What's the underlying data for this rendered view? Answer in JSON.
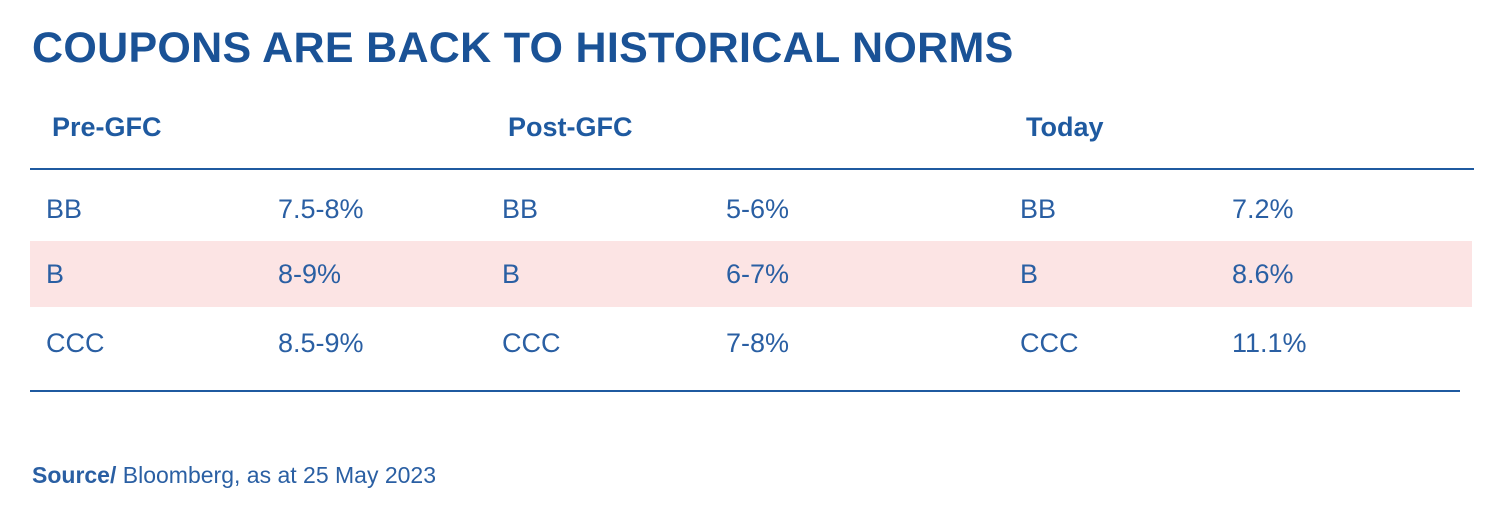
{
  "title": "COUPONS ARE BACK TO HISTORICAL NORMS",
  "groups": [
    {
      "label": "Pre-GFC"
    },
    {
      "label": "Post-GFC"
    },
    {
      "label": "Today"
    }
  ],
  "rows": [
    {
      "pre_rating": "BB",
      "pre_value": "7.5-8%",
      "post_rating": "BB",
      "post_value": "5-6%",
      "today_rating": "BB",
      "today_value": "7.2%"
    },
    {
      "pre_rating": "B",
      "pre_value": "8-9%",
      "post_rating": "B",
      "post_value": "6-7%",
      "today_rating": "B",
      "today_value": "8.6%"
    },
    {
      "pre_rating": "CCC",
      "pre_value": "8.5-9%",
      "post_rating": "CCC",
      "post_value": "7-8%",
      "today_rating": "CCC",
      "today_value": "11.1%"
    }
  ],
  "source": {
    "label": "Source/",
    "text": " Bloomberg, as at 25 May 2023"
  }
}
